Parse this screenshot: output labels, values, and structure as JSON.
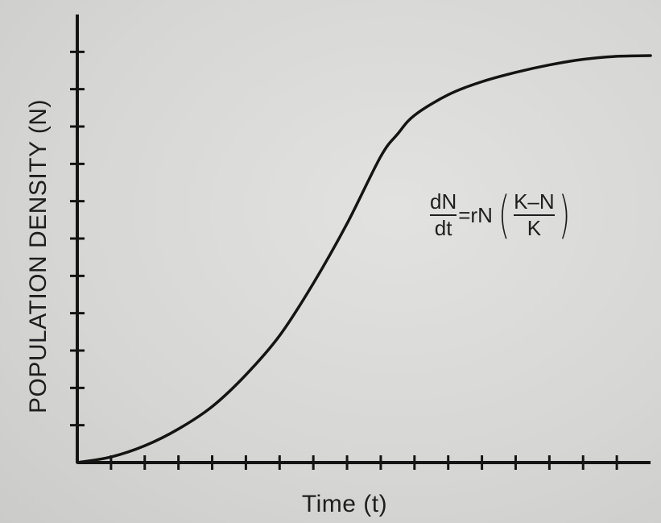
{
  "chart_data": {
    "type": "line",
    "title": "",
    "xlabel": "Time (t)",
    "ylabel": "POPULATION DENSITY (N)",
    "grid": false,
    "legend": "none",
    "xlim": [
      0,
      17
    ],
    "ylim": [
      0,
      12
    ],
    "series": [
      {
        "x": [
          0,
          1,
          2,
          3,
          4,
          5,
          6,
          7,
          8,
          9,
          9.5,
          10,
          11,
          12,
          13,
          14,
          15,
          16,
          17
        ],
        "y": [
          0,
          0.15,
          0.45,
          0.9,
          1.5,
          2.35,
          3.4,
          4.8,
          6.4,
          8.2,
          8.8,
          9.3,
          9.85,
          10.2,
          10.45,
          10.65,
          10.8,
          10.88,
          10.9
        ]
      }
    ],
    "annotations": [
      {
        "kind": "equation",
        "lhs_numerator": "dN",
        "lhs_denominator": "dt",
        "middle": "=rN",
        "rhs_numerator": "K–N",
        "rhs_denominator": "K"
      }
    ],
    "curve_color": "#141414",
    "axis_color": "#141414"
  }
}
